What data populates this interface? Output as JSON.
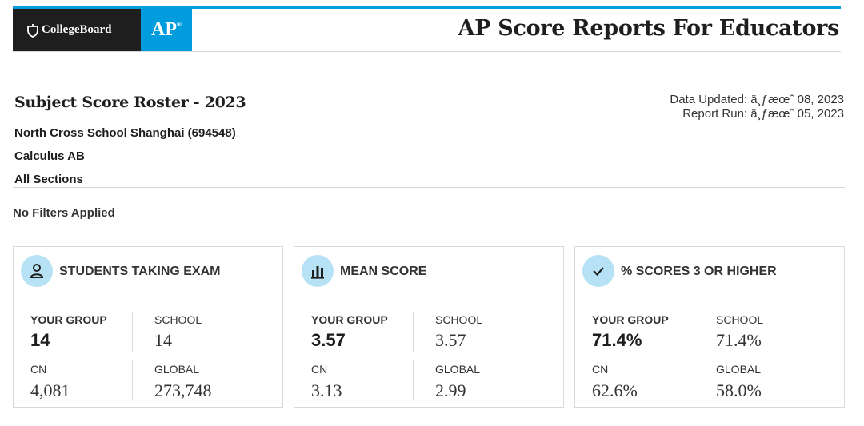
{
  "header": {
    "brand": "CollegeBoard",
    "product": "AP",
    "title": "AP Score Reports For Educators"
  },
  "report": {
    "title": "Subject Score Roster - 2023",
    "school": "North Cross School Shanghai (694548)",
    "course": "Calculus AB",
    "section": "All Sections",
    "data_updated": "Data Updated: ä¸ƒæœˆ 08, 2023",
    "report_run": "Report Run: ä¸ƒæœˆ 05, 2023",
    "filters": "No Filters Applied"
  },
  "cards": [
    {
      "icon": "person-icon",
      "title": "STUDENTS TAKING EXAM",
      "your_group_label": "YOUR GROUP",
      "your_group": "14",
      "school_label": "SCHOOL",
      "school": "14",
      "cn_label": "CN",
      "cn": "4,081",
      "global_label": "GLOBAL",
      "global": "273,748"
    },
    {
      "icon": "bar-chart-icon",
      "title": "MEAN SCORE",
      "your_group_label": "YOUR GROUP",
      "your_group": "3.57",
      "school_label": "SCHOOL",
      "school": "3.57",
      "cn_label": "CN",
      "cn": "3.13",
      "global_label": "GLOBAL",
      "global": "2.99"
    },
    {
      "icon": "checkmark-icon",
      "title": "% SCORES 3 OR HIGHER",
      "your_group_label": "YOUR GROUP",
      "your_group": "71.4%",
      "school_label": "SCHOOL",
      "school": "71.4%",
      "cn_label": "CN",
      "cn": "62.6%",
      "global_label": "GLOBAL",
      "global": "58.0%"
    }
  ],
  "colors": {
    "accent_blue": "#009cde",
    "icon_circle": "#b7e2f6",
    "dark": "#1e1e1e",
    "divider": "#d9d9d9"
  }
}
